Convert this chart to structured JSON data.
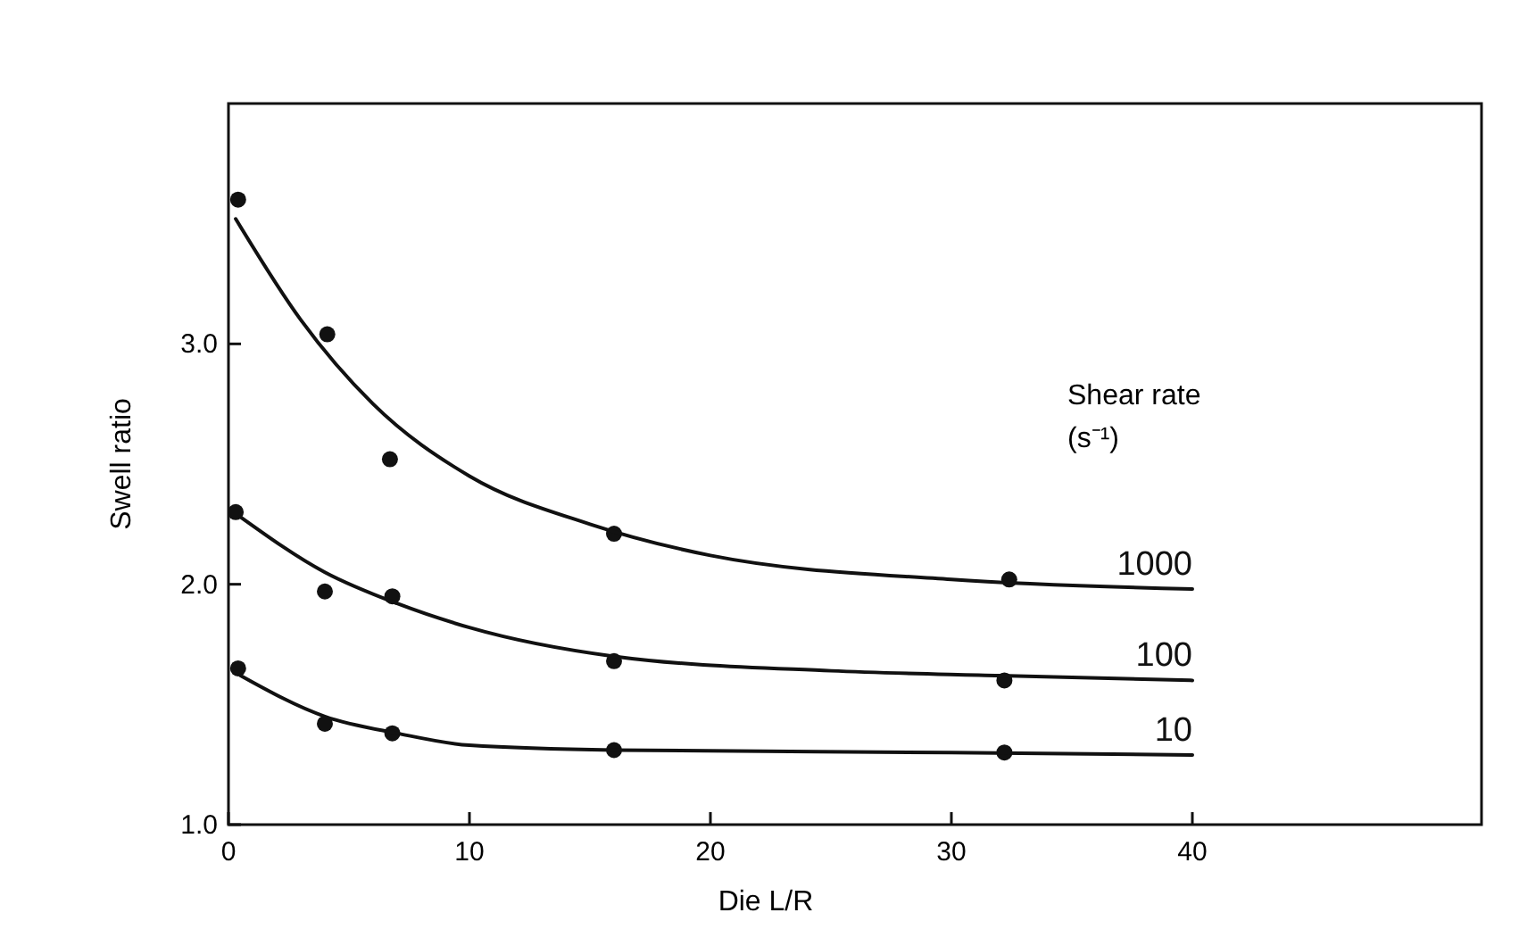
{
  "chart_data": {
    "type": "line",
    "xlabel": "Die L/R",
    "ylabel": "Swell ratio",
    "legend_title": "Shear rate (s⁻¹)",
    "xlim": [
      0,
      52
    ],
    "ylim": [
      1,
      4
    ],
    "xticks": [
      0,
      10,
      20,
      30,
      40
    ],
    "yticks": [
      {
        "value": 1,
        "label": "1.0"
      },
      {
        "value": 2,
        "label": "2.0"
      },
      {
        "value": 3,
        "label": "3.0"
      }
    ],
    "grid": false,
    "series": [
      {
        "type": "scatter",
        "color": "#111111",
        "marker": "circle",
        "x": [
          0.4,
          4.1,
          6.7,
          16,
          32.4
        ],
        "values": [
          3.6,
          3.04,
          2.52,
          2.21,
          2.02
        ]
      },
      {
        "type": "scatter",
        "color": "#111111",
        "marker": "circle",
        "x": [
          0.3,
          4,
          6.8,
          16,
          32.2
        ],
        "values": [
          2.3,
          1.97,
          1.95,
          1.68,
          1.6
        ]
      },
      {
        "type": "scatter",
        "color": "#111111",
        "marker": "circle",
        "x": [
          0.4,
          4,
          6.8,
          16,
          32.2
        ],
        "values": [
          1.65,
          1.42,
          1.38,
          1.31,
          1.3
        ]
      },
      {
        "name": "1000",
        "color": "#111111",
        "x": [
          0.3,
          3,
          6,
          10,
          15,
          20,
          30,
          40
        ],
        "values": [
          3.52,
          3.1,
          2.75,
          2.45,
          2.25,
          2.12,
          2.02,
          1.98
        ]
      },
      {
        "name": "100",
        "color": "#111111",
        "x": [
          0.5,
          4,
          7,
          10,
          16,
          25,
          32,
          40
        ],
        "values": [
          2.28,
          2.05,
          1.92,
          1.82,
          1.7,
          1.64,
          1.62,
          1.6
        ]
      },
      {
        "name": "10",
        "color": "#111111",
        "x": [
          0.5,
          4,
          7,
          10,
          16,
          30,
          40
        ],
        "values": [
          1.62,
          1.45,
          1.38,
          1.33,
          1.31,
          1.3,
          1.29
        ]
      }
    ]
  }
}
